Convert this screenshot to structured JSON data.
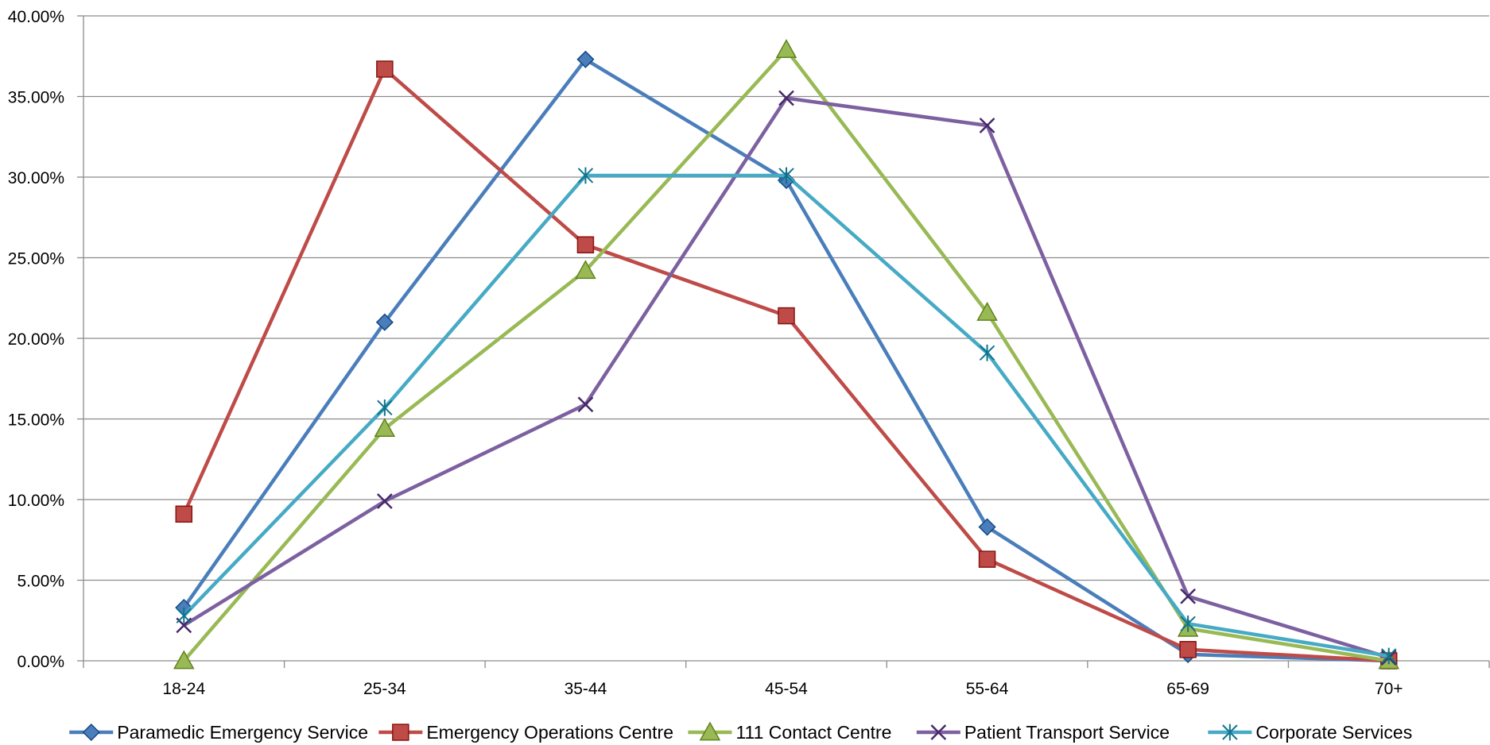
{
  "chart_data": {
    "type": "line",
    "title": "",
    "xlabel": "",
    "ylabel": "",
    "categories": [
      "18-24",
      "25-34",
      "35-44",
      "45-54",
      "55-64",
      "65-69",
      "70+"
    ],
    "ylim": [
      0,
      40
    ],
    "yticks": [
      0,
      5,
      10,
      15,
      20,
      25,
      30,
      35,
      40
    ],
    "ytick_labels": [
      "0.00%",
      "5.00%",
      "10.00%",
      "15.00%",
      "20.00%",
      "25.00%",
      "30.00%",
      "35.00%",
      "40.00%"
    ],
    "grid": true,
    "legend_position": "bottom",
    "series": [
      {
        "name": "Paramedic Emergency Service",
        "color": "#4a7ebb",
        "marker": "diamond",
        "values": [
          3.3,
          21.0,
          37.3,
          29.8,
          8.3,
          0.4,
          0.0
        ]
      },
      {
        "name": "Emergency Operations Centre",
        "color": "#be4b48",
        "marker": "square",
        "values": [
          9.1,
          36.7,
          25.8,
          21.4,
          6.3,
          0.7,
          0.0
        ]
      },
      {
        "name": "111 Contact Centre",
        "color": "#98b954",
        "marker": "triangle",
        "values": [
          0.0,
          14.4,
          24.2,
          37.9,
          21.6,
          2.0,
          0.0
        ]
      },
      {
        "name": "Patient Transport Service",
        "color": "#7d60a0",
        "marker": "x",
        "values": [
          2.2,
          9.9,
          15.9,
          34.9,
          33.2,
          4.0,
          0.2
        ]
      },
      {
        "name": "Corporate Services",
        "color": "#46aac5",
        "marker": "star",
        "values": [
          2.8,
          15.7,
          30.1,
          30.1,
          19.1,
          2.3,
          0.3
        ]
      }
    ]
  }
}
